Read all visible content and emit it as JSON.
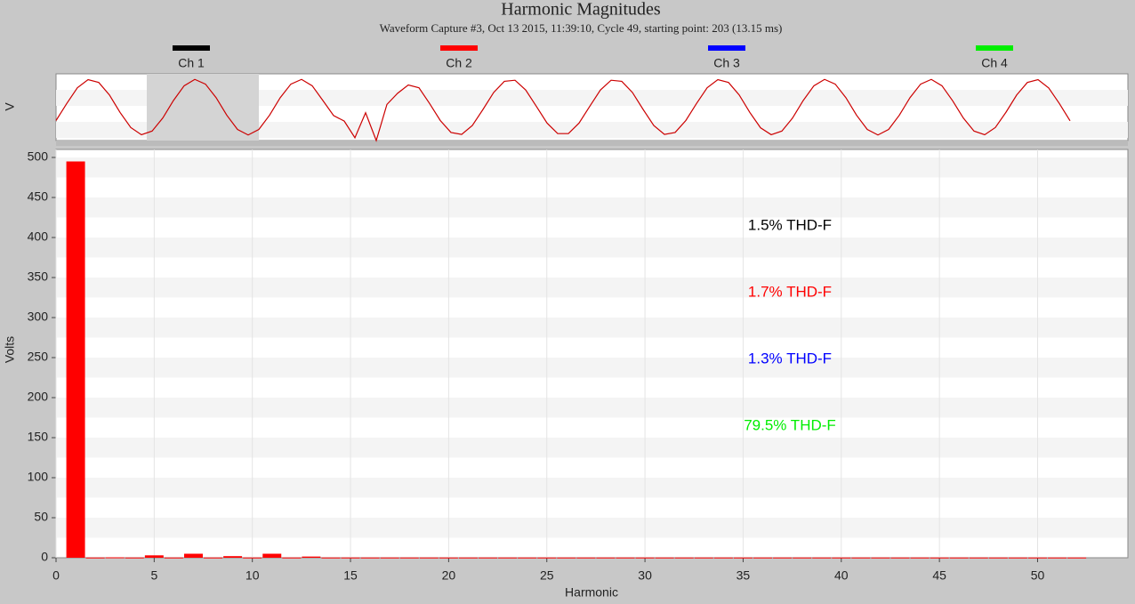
{
  "chart_data": [
    {
      "type": "line",
      "ylabel": "V",
      "color": "#cc0000",
      "ylim": [
        -1.2,
        1.2
      ],
      "values": [
        -0.48,
        0.13,
        0.7,
        0.99,
        0.89,
        0.44,
        -0.19,
        -0.73,
        -0.99,
        -0.86,
        -0.39,
        0.24,
        0.77,
        1.0,
        0.83,
        0.34,
        -0.29,
        -0.8,
        -1.0,
        -0.8,
        -0.29,
        0.34,
        0.83,
        1.0,
        0.77,
        0.24,
        -0.3,
        -0.5,
        -1.1,
        -0.2,
        -1.2,
        0.1,
        0.5,
        0.8,
        0.7,
        0.13,
        -0.48,
        -0.91,
        -0.98,
        -0.66,
        -0.08,
        0.53,
        0.93,
        0.97,
        0.62,
        0.03,
        -0.57,
        -0.95,
        -0.95,
        -0.57,
        0.03,
        0.62,
        0.97,
        0.93,
        0.53,
        -0.08,
        -0.66,
        -0.98,
        -0.91,
        -0.48,
        0.13,
        0.7,
        0.99,
        0.89,
        0.44,
        -0.19,
        -0.74,
        -0.99,
        -0.86,
        -0.39,
        0.24,
        0.77,
        1.0,
        0.83,
        0.34,
        -0.29,
        -0.8,
        -1.0,
        -0.8,
        -0.29,
        0.34,
        0.83,
        1.0,
        0.77,
        0.23,
        -0.39,
        -0.86,
        -0.99,
        -0.73,
        -0.18,
        0.44,
        0.89,
        0.99,
        0.69,
        0.13,
        -0.49
      ]
    },
    {
      "type": "bar",
      "title": "Harmonic Magnitudes",
      "subtitle": "Waveform Capture #3, Oct 13 2015, 11:39:10, Cycle 49,  starting point: 203  (13.15 ms)",
      "legend": [
        {
          "name": "Ch 1",
          "color": "#000000"
        },
        {
          "name": "Ch 2",
          "color": "#ff0000"
        },
        {
          "name": "Ch 3",
          "color": "#0000ff"
        },
        {
          "name": "Ch 4",
          "color": "#00ee00"
        }
      ],
      "xlabel": "Harmonic",
      "ylabel": "Volts",
      "color": "#ff0000",
      "x": [
        1,
        2,
        3,
        4,
        5,
        6,
        7,
        8,
        9,
        10,
        11,
        12,
        13,
        14,
        15,
        16,
        17,
        18,
        19,
        20,
        21,
        22,
        23,
        24,
        25,
        26,
        27,
        28,
        29,
        30,
        31,
        32,
        33,
        34,
        35,
        36,
        37,
        38,
        39,
        40,
        41,
        42,
        43,
        44,
        45,
        46,
        47,
        48,
        49,
        50,
        51,
        52
      ],
      "values": [
        495,
        0.3,
        0.5,
        0.3,
        3,
        0.3,
        5,
        0.3,
        2,
        0.3,
        5,
        0.3,
        1.5,
        0.3,
        0.3,
        0.3,
        0.3,
        0.3,
        0.3,
        0.3,
        0.3,
        0.3,
        0.3,
        0.3,
        0.3,
        0.3,
        0.3,
        0.3,
        0.3,
        0.3,
        0.3,
        0.3,
        0.3,
        0.3,
        0.3,
        0.3,
        0.3,
        0.3,
        0.3,
        0.3,
        0.3,
        0.3,
        0.3,
        0.3,
        0.3,
        0.3,
        0.3,
        0.3,
        0.3,
        0.3,
        0.3,
        0.3
      ],
      "xlim": [
        0,
        54.6
      ],
      "xticks": [
        0,
        5,
        10,
        15,
        20,
        25,
        30,
        35,
        40,
        45,
        50
      ],
      "ylim": [
        0,
        510
      ],
      "yticks": [
        0,
        50,
        100,
        150,
        200,
        250,
        300,
        350,
        400,
        450,
        500
      ],
      "grid": true,
      "annotations": [
        {
          "text": "1.5% THD-F",
          "color": "#000000"
        },
        {
          "text": "1.7% THD-F",
          "color": "#ff0000"
        },
        {
          "text": "1.3% THD-F",
          "color": "#0000ff"
        },
        {
          "text": "79.5% THD-F",
          "color": "#00ee00"
        }
      ]
    }
  ]
}
